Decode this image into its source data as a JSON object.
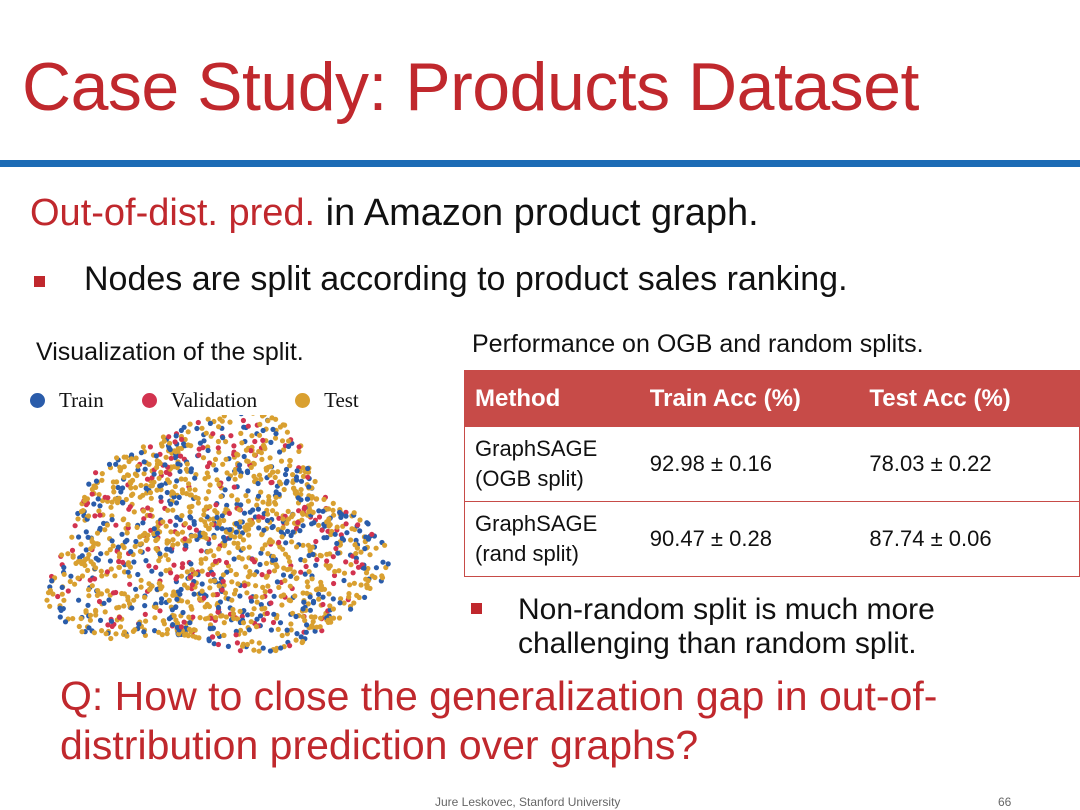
{
  "header": {
    "title": "Case Study: Products Dataset"
  },
  "subtitle": {
    "highlight": "Out-of-dist. pred.",
    "rest": " in Amazon product graph."
  },
  "bullet": "Nodes are split according to product sales ranking.",
  "visualization": {
    "caption": "Visualization of the split.",
    "legend": [
      "Train",
      "Validation",
      "Test"
    ]
  },
  "table": {
    "caption": "Performance on OGB and random splits.",
    "header": [
      "Method",
      "Train Acc (%)",
      "Test Acc (%)"
    ],
    "rows": [
      [
        "GraphSAGE (OGB split)",
        "92.98 ± 0.16",
        "78.03 ± 0.22"
      ],
      [
        "GraphSAGE (rand split)",
        "90.47 ± 0.28",
        "87.74 ± 0.06"
      ]
    ]
  },
  "note": "Non-random split is much more challenging than random split.",
  "question": "Q: How to close the generalization gap in out-of-distribution prediction over graphs?",
  "footer": {
    "credit": "Jure Leskovec, Stanford University",
    "page": "66"
  }
}
